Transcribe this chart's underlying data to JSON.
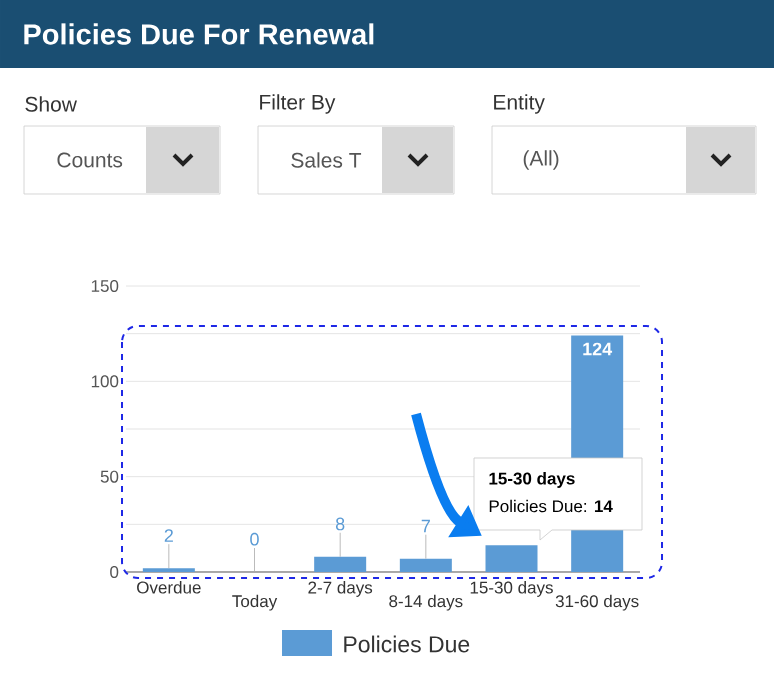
{
  "chart_data": {
    "type": "bar",
    "title": "Policies Due For Renewal",
    "categories": [
      "Overdue",
      "Today",
      "2-7 days",
      "8-14 days",
      "15-30 days",
      "31-60 days"
    ],
    "series": [
      {
        "name": "Policies Due",
        "color": "#5b9bd5",
        "values": [
          2,
          0,
          8,
          7,
          14,
          124
        ],
        "value_labels": [
          "2",
          "0",
          "8",
          "7",
          null,
          "124"
        ]
      }
    ],
    "ylim": [
      0,
      150
    ],
    "yticks": [
      0,
      {
        "value": 25,
        "label": null
      },
      50,
      {
        "value": 75,
        "label": null
      },
      100,
      {
        "value": 125,
        "label": null
      },
      150
    ],
    "grid": "y",
    "legend": "bottom",
    "annotations": [
      "Show",
      "Counts",
      "Filter By",
      "Sales T",
      "Entity",
      "(All)",
      "15-30 days",
      "Policies Due: **14**"
    ]
  }
}
